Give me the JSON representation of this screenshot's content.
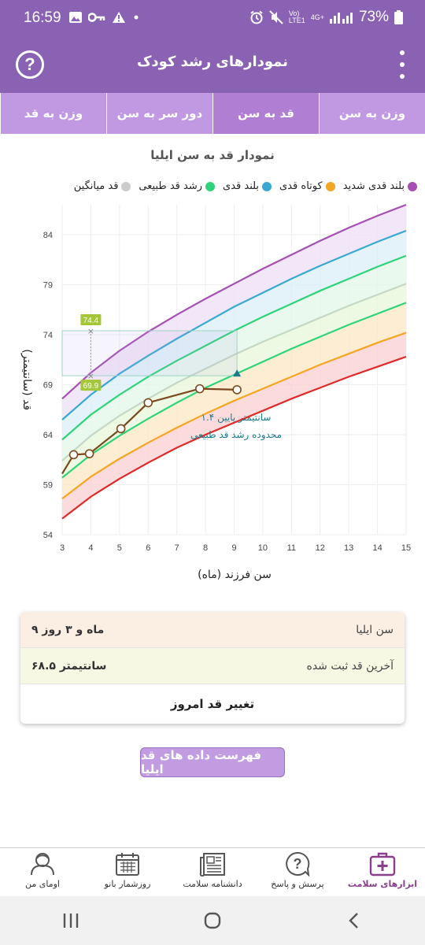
{
  "status_bar": {
    "time": "16:59",
    "battery": "73%",
    "network": "4G+",
    "lte": "LTE1",
    "vo": "Vo)"
  },
  "app_bar": {
    "title": "نمودارهای رشد کودک",
    "help_glyph": "?"
  },
  "tabs": [
    {
      "label": "وزن به سن",
      "active": false
    },
    {
      "label": "قد به سن",
      "active": true
    },
    {
      "label": "دور سر به سن",
      "active": false
    },
    {
      "label": "وزن به قد",
      "active": false
    }
  ],
  "chart": {
    "title": "نمودار قد به سن ایلیا"
  },
  "legend": [
    {
      "label": "بلند قدی شدید",
      "color": "#a64fb3"
    },
    {
      "label": "کوتاه قدی",
      "color": "#f5a623"
    },
    {
      "label": "بلند قدی",
      "color": "#3aa9d0"
    },
    {
      "label": "رشد قد طبیعی",
      "color": "#2fd47a"
    },
    {
      "label": "قد میانگین",
      "color": "#cccccc"
    }
  ],
  "chart_data": {
    "type": "line",
    "xlabel": "سن فرزند (ماه)",
    "ylabel": "قد (سانتیمتر)",
    "xlim": [
      3,
      15
    ],
    "ylim": [
      54,
      87
    ],
    "x_ticks": [
      3,
      4,
      5,
      6,
      7,
      8,
      9,
      10,
      11,
      12,
      13,
      14,
      15
    ],
    "y_ticks": [
      54,
      59,
      64,
      69,
      74,
      79,
      84
    ],
    "percentile_x": [
      3,
      4,
      5,
      6,
      7,
      8,
      9,
      10,
      11,
      12,
      13,
      14,
      15
    ],
    "percentile_series": [
      {
        "name": "severe-short",
        "color": "#e02a2a",
        "values": [
          55.6,
          57.8,
          59.6,
          61.2,
          62.7,
          64.0,
          65.2,
          66.4,
          67.6,
          68.7,
          69.8,
          70.8,
          71.8
        ]
      },
      {
        "name": "short",
        "color": "#f5a623",
        "values": [
          57.6,
          59.8,
          61.6,
          63.2,
          64.7,
          66.1,
          67.4,
          68.6,
          69.8,
          71.0,
          72.1,
          73.2,
          74.2
        ]
      },
      {
        "name": "normal-low",
        "color": "#2fd47a",
        "values": [
          59.7,
          62.0,
          63.9,
          65.6,
          67.2,
          68.7,
          70.0,
          71.3,
          72.6,
          73.8,
          75.0,
          76.1,
          77.2
        ]
      },
      {
        "name": "average",
        "color": "#c4d8c4",
        "values": [
          61.4,
          63.9,
          65.9,
          67.6,
          69.2,
          70.6,
          72.0,
          73.3,
          74.5,
          75.7,
          76.9,
          78.0,
          79.1
        ]
      },
      {
        "name": "normal-high",
        "color": "#2fd47a",
        "values": [
          63.5,
          66.0,
          68.0,
          69.8,
          71.4,
          72.9,
          74.4,
          75.8,
          77.1,
          78.4,
          79.6,
          80.8,
          81.9
        ]
      },
      {
        "name": "tall",
        "color": "#3aa9d0",
        "values": [
          65.5,
          68.0,
          70.1,
          71.9,
          73.6,
          75.2,
          76.8,
          78.2,
          79.6,
          80.9,
          82.1,
          83.3,
          84.4
        ]
      },
      {
        "name": "severe-tall",
        "color": "#a64fb3",
        "values": [
          67.6,
          70.2,
          72.4,
          74.3,
          76.0,
          77.6,
          79.1,
          80.6,
          82.0,
          83.4,
          84.7,
          85.9,
          87.0
        ]
      }
    ],
    "child_measurements": {
      "x": [
        3,
        3.4,
        3.95,
        5.05,
        6.0,
        7.8,
        9.1
      ],
      "y": [
        60.1,
        62.0,
        62.1,
        64.6,
        67.2,
        68.6,
        68.5
      ]
    },
    "reference_band": {
      "x": [
        3,
        9.1
      ],
      "y": [
        69.9,
        74.4
      ]
    },
    "annotations": [
      {
        "label": "74.4",
        "x": 4,
        "y": 74.4
      },
      {
        "label": "69.9",
        "x": 4,
        "y": 69.9
      }
    ],
    "note_line1": "۱.۴ سانتیمتر پایین",
    "note_line2": "محدوده رشد قد طبیعی"
  },
  "info": {
    "age_label": "سن ایلیا",
    "age_value": "۹ ماه و ۳ روز",
    "height_label": "آخرین قد ثبت شده",
    "height_value": "۶۸.۵ سانتیمتر",
    "change_button": "تغییر قد امروز"
  },
  "list_button": "فهرست داده های قد ایلیا",
  "bottom_nav": [
    {
      "label": "ابزارهای سلامت",
      "icon": "medical-kit-icon",
      "active": true
    },
    {
      "label": "پرسش و پاسخ",
      "icon": "question-bubble-icon",
      "active": false
    },
    {
      "label": "دانشنامه سلامت",
      "icon": "newspaper-icon",
      "active": false
    },
    {
      "label": "روزشمار بانو",
      "icon": "calendar-icon",
      "active": false
    },
    {
      "label": "اومای من",
      "icon": "profile-icon",
      "active": false
    }
  ]
}
